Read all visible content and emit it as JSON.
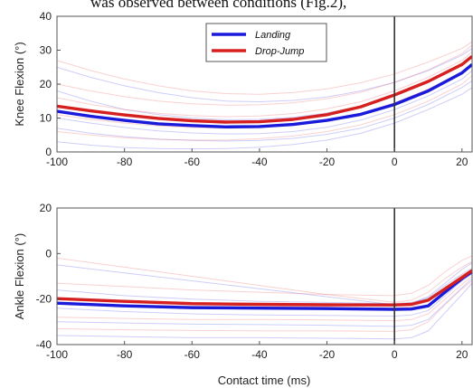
{
  "header_fragment": "was observed between conditions (Fig.2),",
  "chart_data": [
    {
      "type": "line",
      "ylabel": "Knee Flexion (°)",
      "xlabel": "",
      "xlim": [
        -100,
        23
      ],
      "ylim": [
        0,
        40
      ],
      "xticks": [
        -100,
        -80,
        -60,
        -40,
        -20,
        0,
        20
      ],
      "yticks": [
        0,
        10,
        20,
        30,
        40
      ],
      "vline_x": 0,
      "legend": {
        "placement": "top-center",
        "entries": [
          "Landing",
          "Drop-Jump"
        ]
      },
      "series": [
        {
          "name": "Landing",
          "color": "#1a1adb",
          "x": [
            -100,
            -90,
            -80,
            -70,
            -60,
            -50,
            -40,
            -30,
            -20,
            -10,
            0,
            10,
            20,
            23
          ],
          "y": [
            12,
            10.5,
            9.3,
            8.3,
            7.8,
            7.4,
            7.5,
            8.1,
            9.3,
            11.1,
            14.0,
            18.0,
            23.3,
            25.8
          ]
        },
        {
          "name": "Drop-Jump",
          "color": "#d62020",
          "x": [
            -100,
            -90,
            -80,
            -70,
            -60,
            -50,
            -40,
            -30,
            -20,
            -10,
            0,
            10,
            20,
            23
          ],
          "y": [
            13.5,
            12.1,
            10.9,
            9.9,
            9.2,
            8.8,
            8.9,
            9.6,
            11.0,
            13.3,
            16.8,
            20.8,
            25.8,
            28.2
          ]
        }
      ],
      "individual_traces": {
        "blue": [
          [
            7,
            5.5,
            4.5,
            3.8,
            3.4,
            3.2,
            3.4,
            4.0,
            5.2,
            7.0,
            10.0,
            14.0,
            19.0,
            21.0
          ],
          [
            18,
            15,
            12.5,
            11.0,
            10.0,
            9.5,
            9.6,
            10.2,
            11.5,
            13.5,
            16.5,
            20.5,
            25.5,
            28.0
          ],
          [
            3,
            2.0,
            1.3,
            1.0,
            0.9,
            1.0,
            1.4,
            2.2,
            3.5,
            5.5,
            8.5,
            12.5,
            17.0,
            19.0
          ],
          [
            25,
            22,
            19.5,
            17.5,
            16.0,
            15.0,
            14.8,
            15.2,
            16.2,
            18.0,
            20.5,
            24.0,
            28.5,
            30.5
          ],
          [
            10,
            8.5,
            7.2,
            6.2,
            5.6,
            5.3,
            5.4,
            6.0,
            7.3,
            9.4,
            12.5,
            16.5,
            21.5,
            24.0
          ]
        ],
        "red": [
          [
            27,
            24,
            21.5,
            19.5,
            18.0,
            17.2,
            17.0,
            17.5,
            18.6,
            20.4,
            23.0,
            26.5,
            30.5,
            32.5
          ],
          [
            16,
            14,
            12.5,
            11.4,
            10.7,
            10.4,
            10.6,
            11.3,
            12.7,
            14.8,
            18.0,
            22.0,
            27.0,
            29.5
          ],
          [
            6,
            5.0,
            4.2,
            3.7,
            3.5,
            3.5,
            3.9,
            4.7,
            6.0,
            8.0,
            11.0,
            15.0,
            20.0,
            22.5
          ],
          [
            20,
            18,
            16.3,
            15.0,
            14.2,
            13.8,
            13.9,
            14.5,
            15.7,
            17.6,
            20.5,
            24.2,
            29.0,
            31.5
          ],
          [
            11,
            9.6,
            8.5,
            7.7,
            7.2,
            7.0,
            7.2,
            7.9,
            9.2,
            11.3,
            14.5,
            18.5,
            23.5,
            26.0
          ]
        ]
      }
    },
    {
      "type": "line",
      "ylabel": "Ankle Flexion (°)",
      "xlabel": "Contact time (ms)",
      "xlim": [
        -100,
        23
      ],
      "ylim": [
        -40,
        20
      ],
      "xticks": [
        -100,
        -80,
        -60,
        -40,
        -20,
        0,
        20
      ],
      "yticks": [
        -40,
        -20,
        0,
        20
      ],
      "vline_x": 0,
      "series": [
        {
          "name": "Landing",
          "color": "#1a1adb",
          "x": [
            -100,
            -80,
            -60,
            -40,
            -20,
            0,
            5,
            10,
            15,
            20,
            23
          ],
          "y": [
            -21.8,
            -23.0,
            -23.8,
            -24.0,
            -24.2,
            -24.5,
            -24.4,
            -23.0,
            -17.0,
            -11.0,
            -8.0
          ]
        },
        {
          "name": "Drop-Jump",
          "color": "#d62020",
          "x": [
            -100,
            -80,
            -60,
            -40,
            -20,
            0,
            5,
            10,
            15,
            20,
            23
          ],
          "y": [
            -19.8,
            -21.0,
            -22.0,
            -22.3,
            -22.5,
            -22.6,
            -22.3,
            -20.5,
            -15.5,
            -10.5,
            -7.5
          ]
        }
      ],
      "individual_traces": {
        "blue": [
          [
            -5,
            -8.5,
            -12.0,
            -15.5,
            -19.0,
            -22.5,
            -22.0,
            -19.0,
            -13.0,
            -7.0,
            -4.0
          ],
          [
            -30,
            -30.5,
            -31.0,
            -31.2,
            -31.5,
            -32.0,
            -31.5,
            -29.0,
            -22.0,
            -15.0,
            -11.0
          ],
          [
            -16,
            -18.5,
            -20.0,
            -21.0,
            -21.5,
            -22.0,
            -21.5,
            -19.5,
            -14.0,
            -9.0,
            -6.5
          ],
          [
            -36,
            -36.5,
            -37.0,
            -37.0,
            -37.2,
            -37.5,
            -37.0,
            -34.0,
            -26.0,
            -18.0,
            -13.0
          ],
          [
            -24,
            -25.5,
            -26.5,
            -27.0,
            -27.2,
            -27.5,
            -27.0,
            -25.0,
            -18.5,
            -12.0,
            -9.0
          ]
        ],
        "red": [
          [
            -13,
            -14.5,
            -16.0,
            -17.0,
            -18.0,
            -18.5,
            -17.5,
            -14.0,
            -8.0,
            -3.0,
            -1.0
          ],
          [
            -28,
            -28.5,
            -29.0,
            -29.0,
            -29.2,
            -29.5,
            -29.0,
            -26.5,
            -20.0,
            -13.5,
            -10.0
          ],
          [
            -2,
            -6.0,
            -10.0,
            -14.0,
            -18.0,
            -21.5,
            -20.5,
            -17.0,
            -11.0,
            -6.0,
            -3.5
          ],
          [
            -22,
            -22.5,
            -23.0,
            -23.2,
            -23.5,
            -24.0,
            -23.5,
            -21.0,
            -15.0,
            -9.5,
            -7.0
          ],
          [
            -33,
            -33.5,
            -33.8,
            -34.0,
            -34.0,
            -34.2,
            -33.5,
            -30.0,
            -22.5,
            -15.5,
            -12.0
          ]
        ]
      }
    }
  ]
}
